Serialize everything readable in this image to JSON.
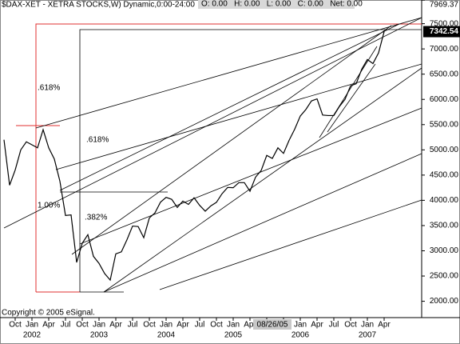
{
  "chart_data": {
    "type": "line",
    "title": "$DAX-XET - XETRA STOCKS,W) Dynamic,0:00-24:00",
    "ohlc_readout": "O: 0.00   H: 0.00   L: 0.00   C: 0.00   Net: 0.00",
    "copyright": "Copyright © 2005 eSignal.",
    "cursor_date": "08/26/05",
    "annotations": [
      ".618%",
      ".618%",
      "1.00%",
      ".382%"
    ],
    "x": [
      "2001-08",
      "2001-09",
      "2001-10",
      "2001-11",
      "2001-12",
      "2002-01",
      "2002-02",
      "2002-03",
      "2002-04",
      "2002-05",
      "2002-06",
      "2002-07",
      "2002-08",
      "2002-09",
      "2002-10",
      "2002-11",
      "2002-12",
      "2003-01",
      "2003-02",
      "2003-03",
      "2003-04",
      "2003-05",
      "2003-06",
      "2003-07",
      "2003-08",
      "2003-09",
      "2003-10",
      "2003-11",
      "2003-12",
      "2004-01",
      "2004-02",
      "2004-03",
      "2004-04",
      "2004-05",
      "2004-06",
      "2004-07",
      "2004-08",
      "2004-09",
      "2004-10",
      "2004-11",
      "2004-12",
      "2005-01",
      "2005-02",
      "2005-03",
      "2005-04",
      "2005-05",
      "2005-06",
      "2005-07",
      "2005-08",
      "2005-09",
      "2005-10",
      "2005-11",
      "2005-12",
      "2006-01",
      "2006-02",
      "2006-03",
      "2006-04",
      "2006-05",
      "2006-06",
      "2006-07",
      "2006-08",
      "2006-09",
      "2006-10",
      "2006-11",
      "2006-12",
      "2007-01",
      "2007-02",
      "2007-03",
      "2007-04"
    ],
    "series": [
      {
        "color": "#000000",
        "values": [
          5200,
          4300,
          4600,
          5000,
          5160,
          5100,
          5040,
          5400,
          5040,
          4820,
          4380,
          3700,
          3710,
          2770,
          3150,
          3320,
          2890,
          2750,
          2550,
          2420,
          2940,
          2980,
          3220,
          3490,
          3480,
          3260,
          3650,
          3750,
          3965,
          4060,
          4020,
          3860,
          3985,
          3920,
          4050,
          3900,
          3785,
          3890,
          3960,
          4130,
          4255,
          4250,
          4350,
          4350,
          4180,
          4460,
          4590,
          4890,
          4830,
          5040,
          4930,
          5190,
          5410,
          5670,
          5800,
          5970,
          6010,
          5690,
          5680,
          5680,
          5860,
          6000,
          6270,
          6310,
          6600,
          6790,
          6710,
          6920,
          7342.54
        ]
      }
    ],
    "ylim": [
      1708,
      7969.37
    ],
    "yticks": [
      {
        "value": 2000,
        "label": "2000.00"
      },
      {
        "value": 2500,
        "label": "2500.00"
      },
      {
        "value": 3000,
        "label": "3000.00"
      },
      {
        "value": 3500,
        "label": "3500.00"
      },
      {
        "value": 4000,
        "label": "4000.00"
      },
      {
        "value": 4500,
        "label": "4500.00"
      },
      {
        "value": 5000,
        "label": "5000.00"
      },
      {
        "value": 5500,
        "label": "5500.00"
      },
      {
        "value": 6000,
        "label": "6000.00"
      },
      {
        "value": 6500,
        "label": "6500.00"
      },
      {
        "value": 7000,
        "label": "7000.00"
      },
      {
        "value": 7500,
        "label": "7500.00"
      },
      7969.37
    ],
    "xticks": [
      {
        "value": "2001-10",
        "label": "Oct"
      },
      {
        "value": "2002-01",
        "label": "Jan"
      },
      {
        "value": "2002-04",
        "label": "Apr"
      },
      {
        "value": "2002-07",
        "label": "Jul"
      },
      {
        "value": "2002-10",
        "label": "Oct"
      },
      {
        "value": "2003-01",
        "label": "Jan"
      },
      {
        "value": "2003-04",
        "label": "Apr"
      },
      {
        "value": "2003-07",
        "label": "Jul"
      },
      {
        "value": "2003-10",
        "label": "Oct"
      },
      {
        "value": "2004-01",
        "label": "Jan"
      },
      {
        "value": "2004-04",
        "label": "Apr"
      },
      {
        "value": "2004-07",
        "label": "Jul"
      },
      {
        "value": "2004-10",
        "label": "Oct"
      },
      {
        "value": "2005-01",
        "label": "Jan"
      },
      {
        "value": "2005-04",
        "label": "Apr"
      },
      {
        "value": "2005-07",
        "label": "Jul"
      },
      {
        "value": "2005-10",
        "label": "Oct"
      },
      {
        "value": "2006-01",
        "label": "Jan"
      },
      {
        "value": "2006-04",
        "label": "Apr"
      },
      {
        "value": "2006-07",
        "label": "Jul"
      },
      {
        "value": "2006-10",
        "label": "Oct"
      },
      {
        "value": "2007-01",
        "label": "Jan"
      },
      {
        "value": "2007-04",
        "label": "Apr"
      }
    ],
    "year_ticks": [
      {
        "value": "2002-01",
        "label": "2002"
      },
      {
        "value": "2003-01",
        "label": "2003"
      },
      {
        "value": "2004-01",
        "label": "2004"
      },
      {
        "value": "2005-01",
        "label": "2005"
      },
      {
        "value": "2006-01",
        "label": "2006"
      },
      {
        "value": "2007-01",
        "label": "2007"
      }
    ]
  }
}
